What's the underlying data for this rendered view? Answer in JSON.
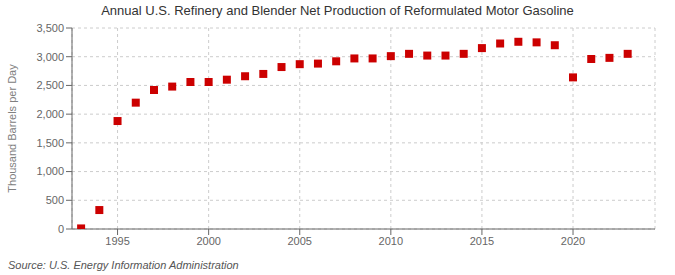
{
  "chart_data": {
    "type": "scatter",
    "title": "Annual U.S. Refinery and Blender Net Production of Reformulated Motor Gasoline",
    "y_label": "Thousand Barrels per Day",
    "annotations": [
      "Source: U.S. Energy Information Administration"
    ],
    "x": [
      1993,
      1994,
      1995,
      1996,
      1997,
      1998,
      1999,
      2000,
      2001,
      2002,
      2003,
      2004,
      2005,
      2006,
      2007,
      2008,
      2009,
      2010,
      2011,
      2012,
      2013,
      2014,
      2015,
      2016,
      2017,
      2018,
      2019,
      2020,
      2021,
      2022,
      2023
    ],
    "values": [
      10,
      330,
      1880,
      2200,
      2420,
      2480,
      2560,
      2560,
      2600,
      2660,
      2700,
      2820,
      2870,
      2880,
      2920,
      2970,
      2970,
      3010,
      3050,
      3020,
      3020,
      3050,
      3150,
      3230,
      3260,
      3250,
      3200,
      2640,
      2960,
      2980,
      3050
    ],
    "color": "#cc0000",
    "marker": "square",
    "xlim": [
      1992.5,
      2024.5
    ],
    "xticks": [
      1995,
      2000,
      2005,
      2010,
      2015,
      2020
    ],
    "ylim": [
      0,
      3500
    ],
    "yticks": [
      0,
      500,
      {
        "value": 1000,
        "label": "1,000"
      },
      {
        "value": 1500,
        "label": "1,500"
      },
      {
        "value": 2000,
        "label": "2,000"
      },
      {
        "value": 2500,
        "label": "2,500"
      },
      {
        "value": 3000,
        "label": "3,000"
      },
      {
        "value": 3500,
        "label": "3,500"
      }
    ],
    "grid": true
  }
}
